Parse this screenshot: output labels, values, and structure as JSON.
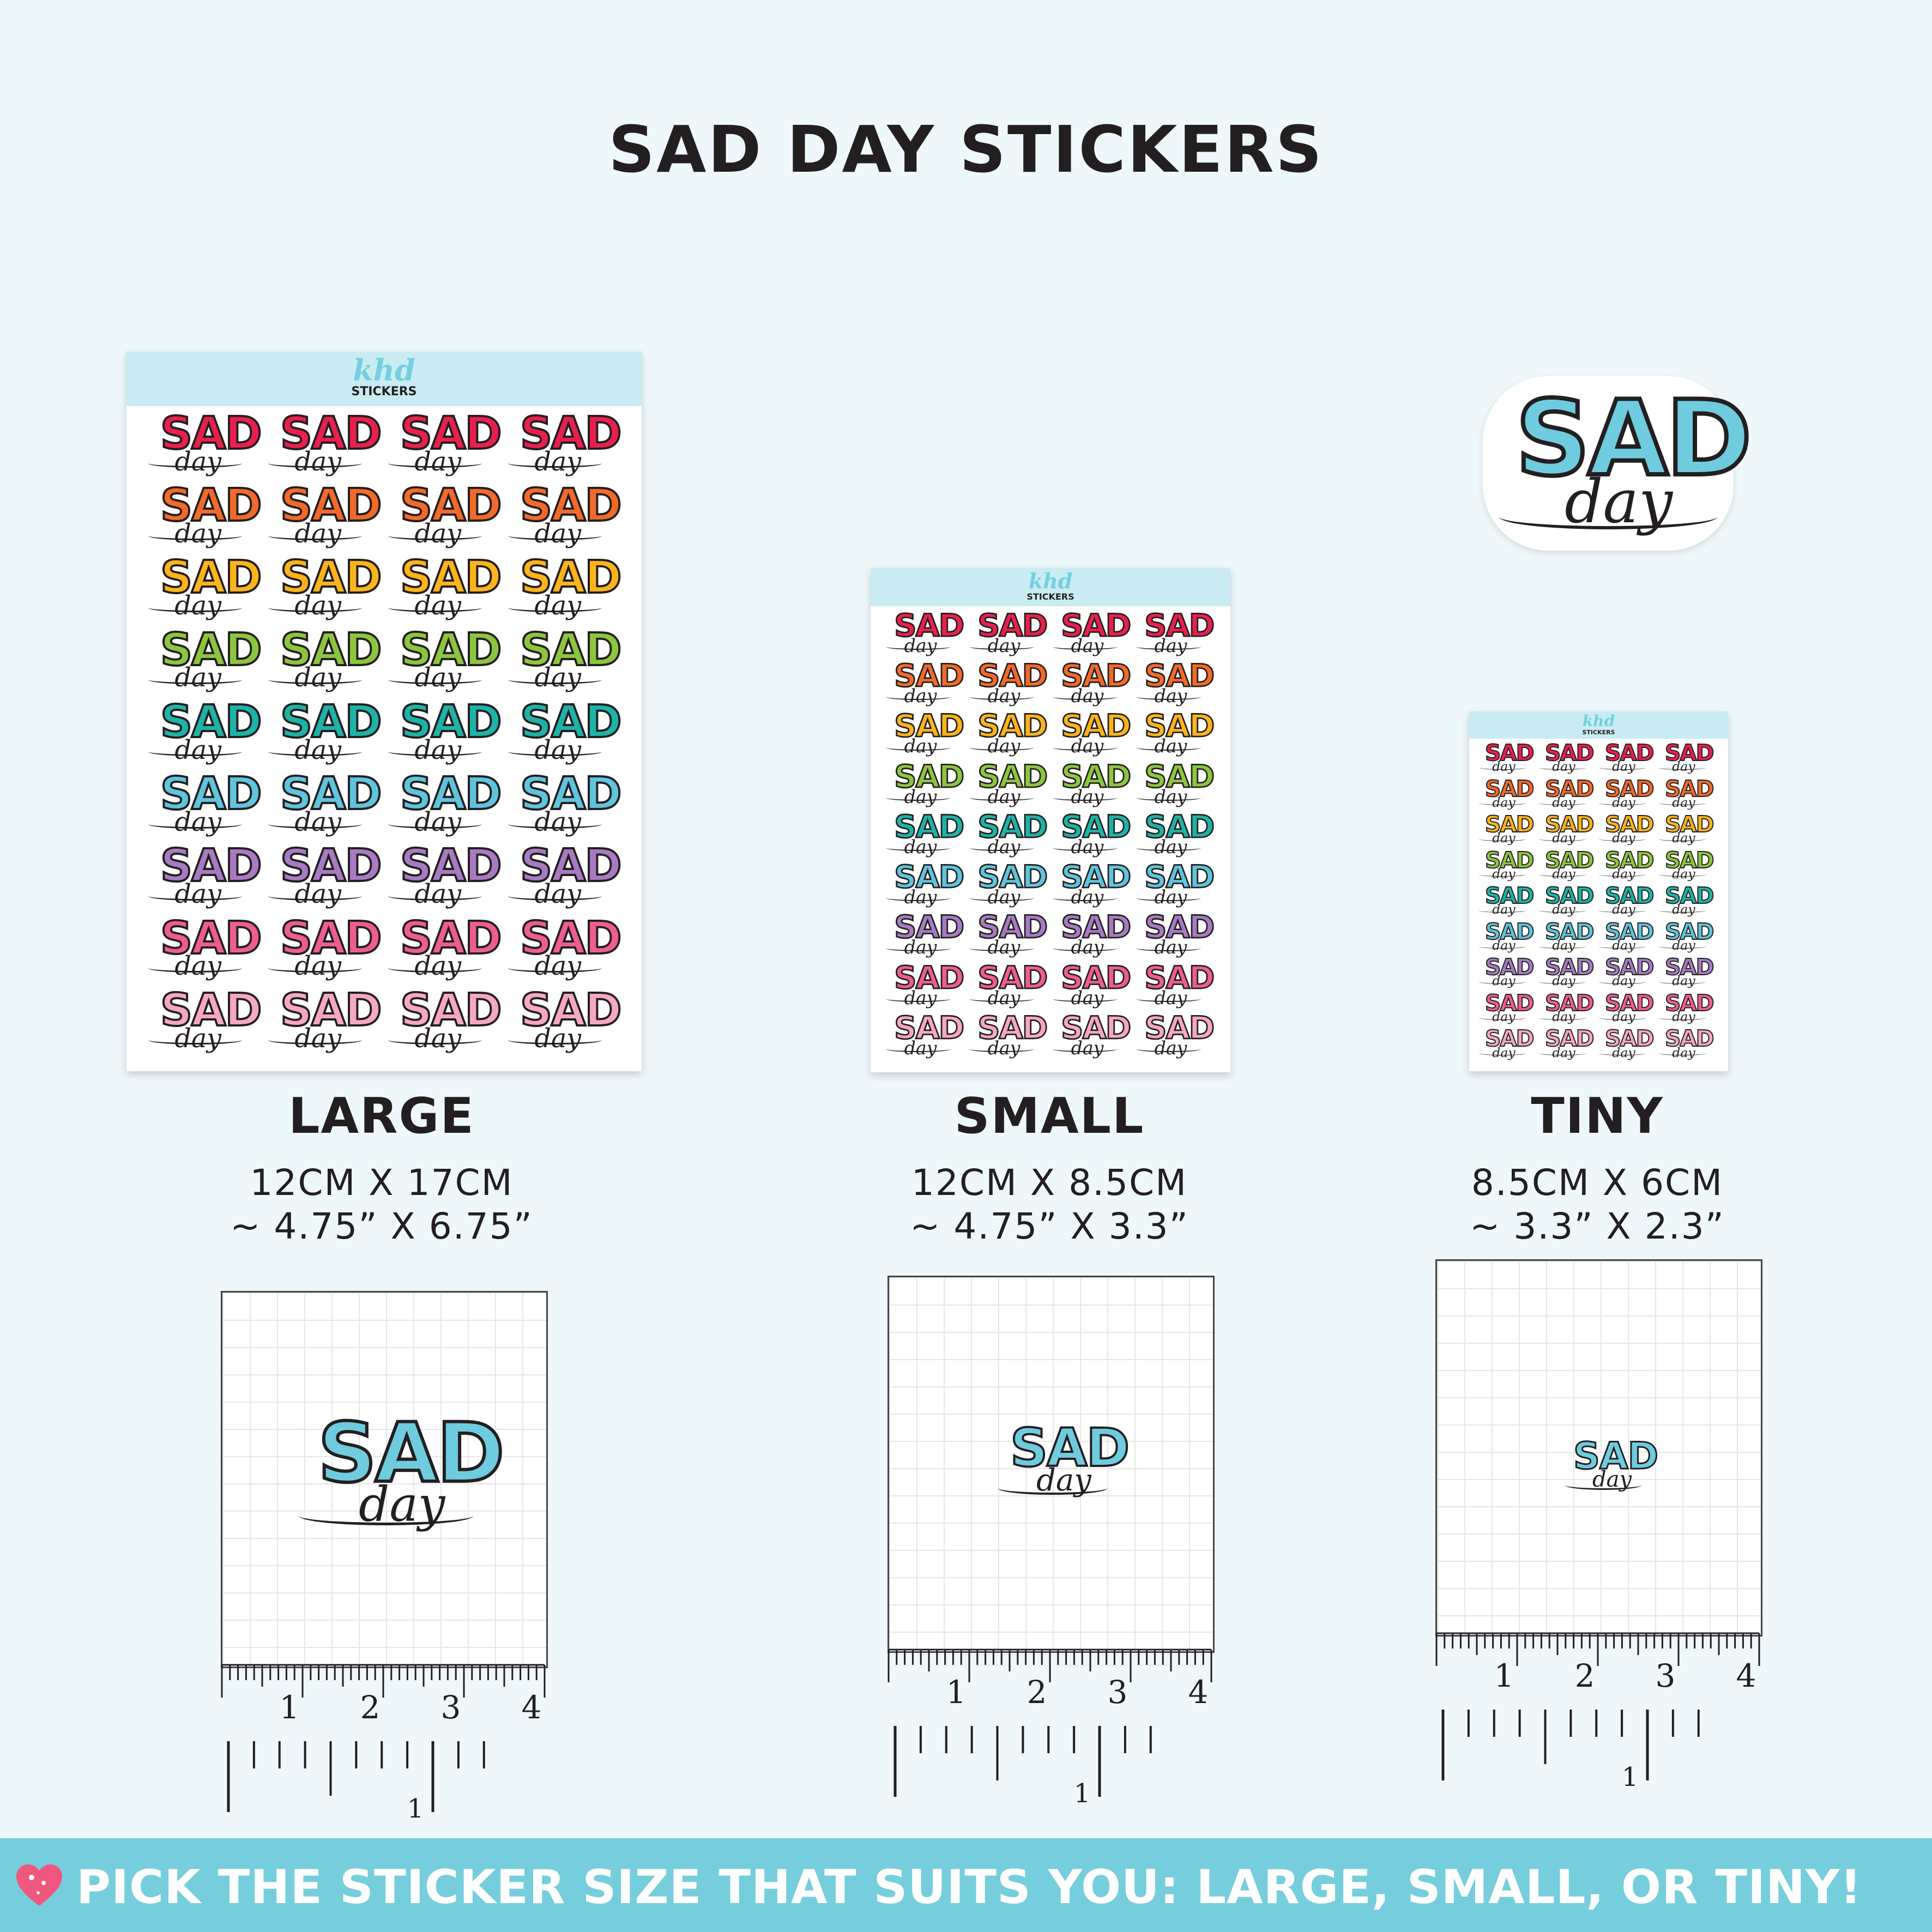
{
  "title": "SAD DAY STICKERS",
  "brand": {
    "script": "khd",
    "word": "STICKERS"
  },
  "sticker": {
    "word1": "SAD",
    "word2": "day"
  },
  "sticker_colors": [
    "#e8204d",
    "#f26a2a",
    "#fbb41b",
    "#8cc63f",
    "#1eb3a6",
    "#5fc4dc",
    "#a77bc2",
    "#ee5d92",
    "#f6a7c4"
  ],
  "accent": "#76cedc",
  "sizes": [
    {
      "name": "LARGE",
      "metric": "12CM X 17CM",
      "imperial": "~ 4.75” X 6.75”"
    },
    {
      "name": "SMALL",
      "metric": "12CM X 8.5CM",
      "imperial": "~ 4.75” X 3.3”"
    },
    {
      "name": "TINY",
      "metric": "8.5CM X 6CM",
      "imperial": "~ 3.3” X 2.3”"
    }
  ],
  "ruler": {
    "cm_labels": [
      "1",
      "2",
      "3",
      "4"
    ],
    "inch_label": "1"
  },
  "footer": {
    "text": "PICK THE STICKER SIZE THAT SUITS YOU: LARGE, SMALL, OR TINY!",
    "icon": "heart-icon"
  }
}
